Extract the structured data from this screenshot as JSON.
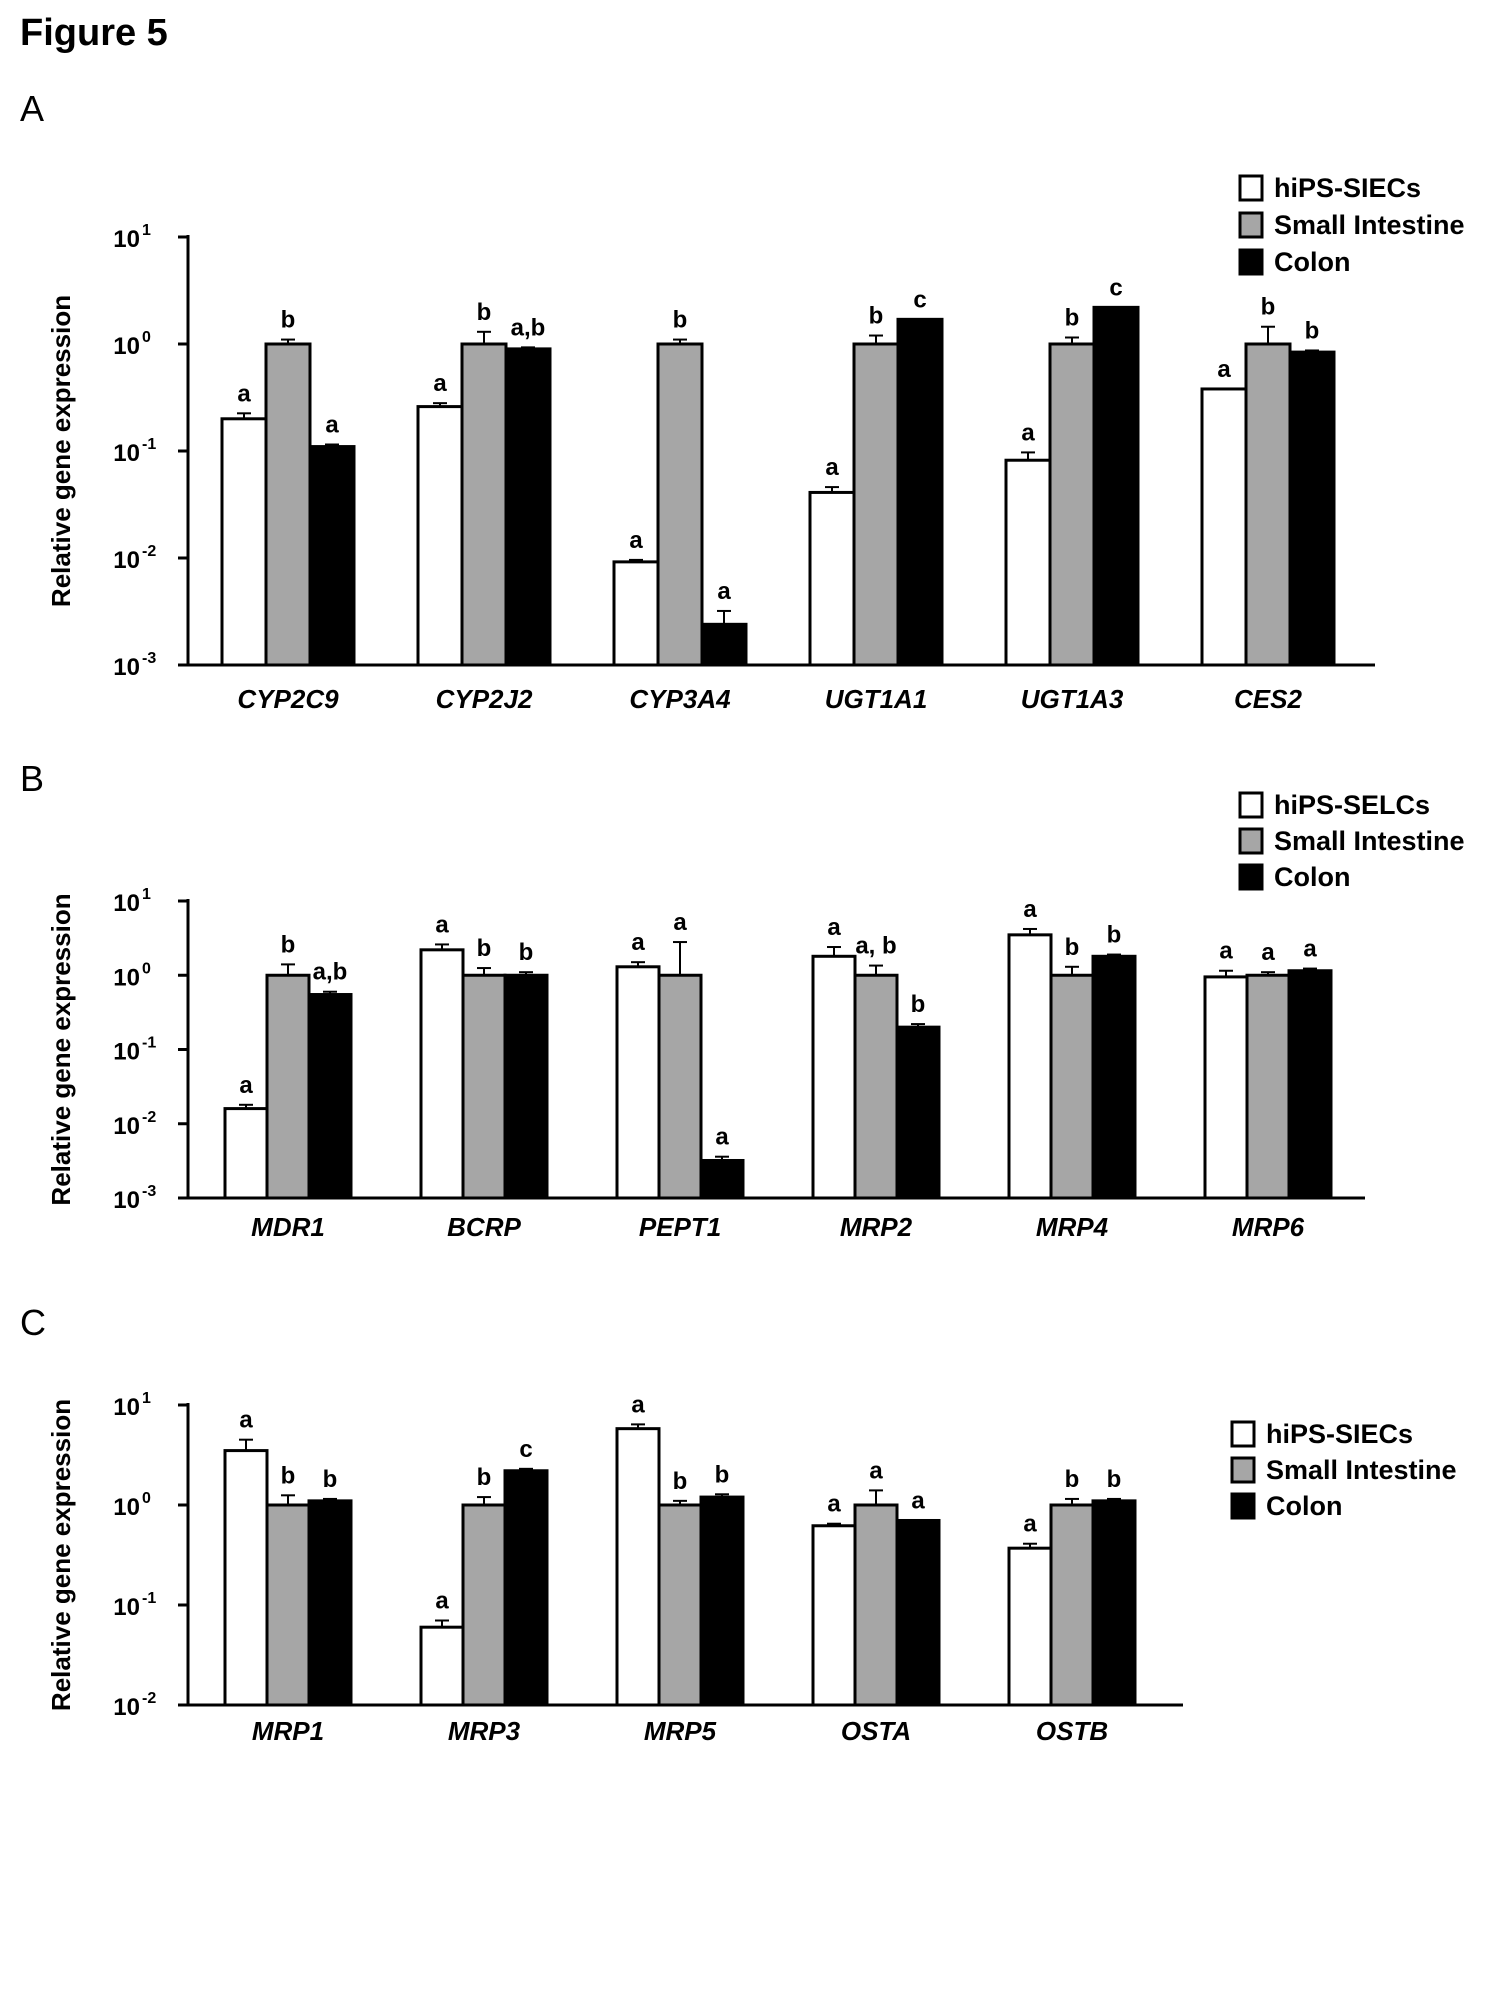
{
  "figure_title": "Figure 5",
  "colors": {
    "hips": "#ffffff",
    "small_intestine": "#a6a6a6",
    "colon": "#000000",
    "axis": "#000000"
  },
  "chart_data": [
    {
      "panel": "A",
      "type": "bar",
      "scale": "log",
      "ylabel": "Relative  gene expression",
      "ylim": [
        0.001,
        10
      ],
      "yticks": [
        {
          "base": "10",
          "exp": "1"
        },
        {
          "base": "10",
          "exp": "0"
        },
        {
          "base": "10",
          "exp": "-1"
        },
        {
          "base": "10",
          "exp": "-2"
        },
        {
          "base": "10",
          "exp": "-3"
        }
      ],
      "legend": [
        "hiPS-SIECs",
        "Small Intestine",
        "Colon"
      ],
      "legend_position": "top-right",
      "categories": [
        "CYP2C9",
        "CYP2J2",
        "CYP3A4",
        "UGT1A1",
        "UGT1A3",
        "CES2"
      ],
      "series": [
        {
          "name": "hiPS-SIECs",
          "values": [
            0.2,
            0.26,
            0.0092,
            0.041,
            0.082,
            0.38
          ],
          "errors": [
            0.025,
            0.02,
            0.0004,
            0.005,
            0.015,
            0
          ],
          "labels": [
            "a",
            "a",
            "a",
            "a",
            "a",
            "a"
          ]
        },
        {
          "name": "Small Intestine",
          "values": [
            1.0,
            1.0,
            1.0,
            1.0,
            1.0,
            1.0
          ],
          "errors": [
            0.1,
            0.3,
            0.1,
            0.2,
            0.15,
            0.45
          ],
          "labels": [
            "b",
            "b",
            "b",
            "b",
            "b",
            "b"
          ]
        },
        {
          "name": "Colon",
          "values": [
            0.11,
            0.9,
            0.0024,
            1.7,
            2.2,
            0.84
          ],
          "errors": [
            0.005,
            0.03,
            0.0008,
            0,
            0,
            0.03
          ],
          "labels": [
            "a",
            "a,b",
            "a",
            "c",
            "c",
            "b"
          ]
        }
      ]
    },
    {
      "panel": "B",
      "type": "bar",
      "scale": "log",
      "ylabel": "Relative  gene expression",
      "ylim": [
        0.001,
        10
      ],
      "yticks": [
        {
          "base": "10",
          "exp": "1"
        },
        {
          "base": "10",
          "exp": "0"
        },
        {
          "base": "10",
          "exp": "-1"
        },
        {
          "base": "10",
          "exp": "-2"
        },
        {
          "base": "10",
          "exp": "-3"
        }
      ],
      "legend": [
        "hiPS-SELCs",
        "Small Intestine",
        "Colon"
      ],
      "legend_position": "top-right",
      "categories": [
        "MDR1",
        "BCRP",
        "PEPT1",
        "MRP2",
        "MRP4",
        "MRP6"
      ],
      "series": [
        {
          "name": "hiPS-SELCs",
          "values": [
            0.016,
            2.2,
            1.3,
            1.8,
            3.5,
            0.95
          ],
          "errors": [
            0.002,
            0.4,
            0.2,
            0.6,
            0.7,
            0.2
          ],
          "labels": [
            "a",
            "a",
            "a",
            "a",
            "a",
            "a"
          ]
        },
        {
          "name": "Small Intestine",
          "values": [
            1.0,
            1.0,
            1.0,
            1.0,
            1.0,
            1.0
          ],
          "errors": [
            0.4,
            0.25,
            1.8,
            0.35,
            0.3,
            0.1
          ],
          "labels": [
            "b",
            "b",
            "a",
            "a, b",
            "b",
            "a"
          ]
        },
        {
          "name": "Colon",
          "values": [
            0.55,
            1.0,
            0.0032,
            0.2,
            1.8,
            1.15
          ],
          "errors": [
            0.05,
            0.1,
            0.0004,
            0.02,
            0.1,
            0.08
          ],
          "labels": [
            "a,b",
            "b",
            "a",
            "b",
            "b",
            "a"
          ]
        }
      ]
    },
    {
      "panel": "C",
      "type": "bar",
      "scale": "log",
      "ylabel": "Relative  gene expression",
      "ylim": [
        0.01,
        10
      ],
      "yticks": [
        {
          "base": "10",
          "exp": "1"
        },
        {
          "base": "10",
          "exp": "0"
        },
        {
          "base": "10",
          "exp": "-1"
        },
        {
          "base": "10",
          "exp": "-2"
        }
      ],
      "legend": [
        "hiPS-SIECs",
        "Small Intestine",
        "Colon"
      ],
      "legend_position": "right",
      "categories": [
        "MRP1",
        "MRP3",
        "MRP5",
        "OSTA",
        "OSTB"
      ],
      "series": [
        {
          "name": "hiPS-SIECs",
          "values": [
            3.5,
            0.06,
            5.8,
            0.62,
            0.37
          ],
          "errors": [
            1.0,
            0.01,
            0.6,
            0.03,
            0.04
          ],
          "labels": [
            "a",
            "a",
            "a",
            "a",
            "a"
          ]
        },
        {
          "name": "Small Intestine",
          "values": [
            1.0,
            1.0,
            1.0,
            1.0,
            1.0
          ],
          "errors": [
            0.25,
            0.2,
            0.1,
            0.4,
            0.15
          ],
          "labels": [
            "b",
            "b",
            "b",
            "a",
            "b"
          ]
        },
        {
          "name": "Colon",
          "values": [
            1.1,
            2.2,
            1.2,
            0.7,
            1.1
          ],
          "errors": [
            0.05,
            0.1,
            0.08,
            0,
            0.05
          ],
          "labels": [
            "b",
            "c",
            "b",
            "a",
            "b"
          ]
        }
      ]
    }
  ]
}
